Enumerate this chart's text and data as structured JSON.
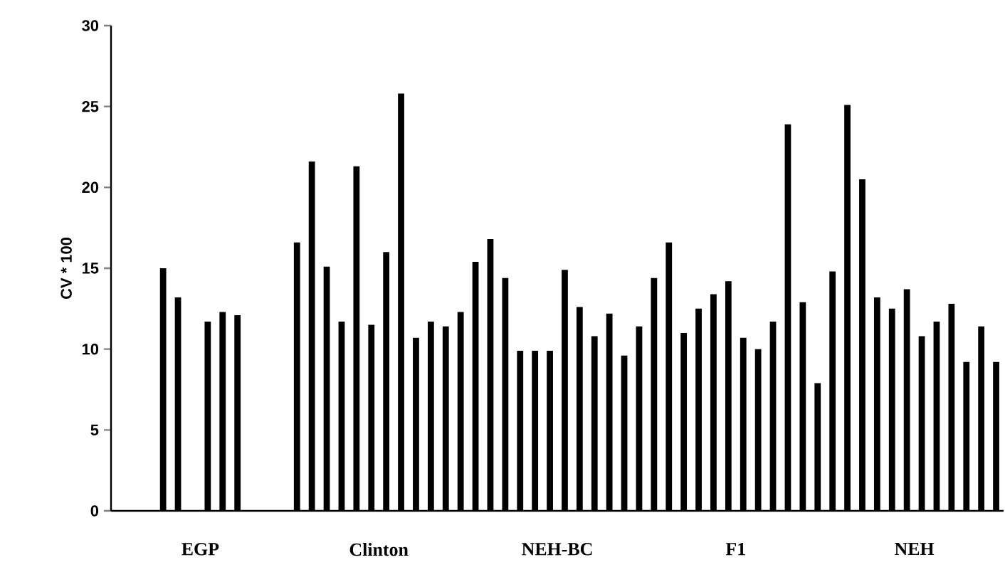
{
  "chart_data": {
    "type": "bar",
    "ylabel": "CV * 100",
    "categories": [
      "EGP",
      "Clinton",
      "NEH-BC",
      "F1",
      "NEH"
    ],
    "ylim": [
      0,
      30
    ],
    "yticks": [
      0,
      5,
      10,
      15,
      20,
      25,
      30
    ],
    "series": [
      {
        "color": "#000000",
        "values": [
          null,
          16.6,
          15.4,
          14.4,
          14.8
        ]
      },
      {
        "color": "#000000",
        "values": [
          null,
          21.6,
          16.8,
          16.6,
          25.1
        ]
      },
      {
        "color": "#000000",
        "values": [
          null,
          15.1,
          14.4,
          11.0,
          20.5
        ]
      },
      {
        "color": "#000000",
        "values": [
          15.0,
          11.7,
          9.9,
          12.5,
          13.2
        ]
      },
      {
        "color": "#000000",
        "values": [
          13.2,
          21.3,
          9.9,
          13.4,
          12.5
        ]
      },
      {
        "color": "#000000",
        "values": [
          null,
          11.5,
          9.9,
          14.2,
          13.7
        ]
      },
      {
        "color": "#000000",
        "values": [
          11.7,
          16.0,
          14.9,
          10.7,
          10.8
        ]
      },
      {
        "color": "#000000",
        "values": [
          12.3,
          25.8,
          12.6,
          10.0,
          11.7
        ]
      },
      {
        "color": "#000000",
        "values": [
          12.1,
          10.7,
          10.8,
          11.7,
          12.8
        ]
      },
      {
        "color": "#000000",
        "values": [
          null,
          11.7,
          12.2,
          23.9,
          9.2
        ]
      },
      {
        "color": "#000000",
        "values": [
          null,
          11.4,
          9.6,
          12.9,
          11.4
        ]
      },
      {
        "color": "#000000",
        "values": [
          null,
          12.3,
          11.4,
          7.9,
          9.2
        ]
      }
    ]
  }
}
